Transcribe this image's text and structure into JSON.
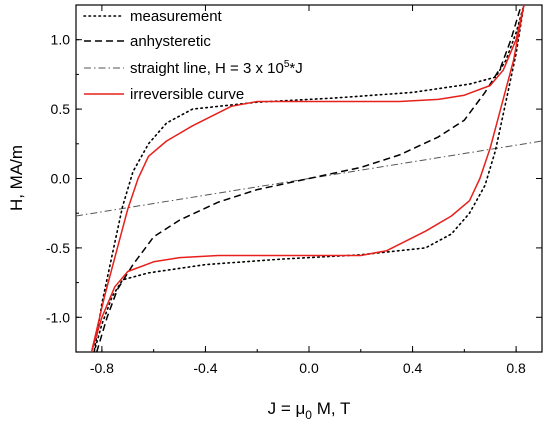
{
  "chart_data": {
    "type": "line",
    "xlabel": "J = μ0 M, T",
    "xlabel_parts": {
      "pre": "J = μ",
      "sub": "0",
      "post": " M, T"
    },
    "ylabel": "H, MA/m",
    "xlim": [
      -0.9,
      0.9
    ],
    "ylim": [
      -1.25,
      1.25
    ],
    "x_ticks": [
      -0.8,
      -0.4,
      0.0,
      0.4,
      0.8
    ],
    "x_tick_labels": [
      "-0.8",
      "-0.4",
      "0.0",
      "0.4",
      "0.8"
    ],
    "y_ticks": [
      -1.0,
      -0.5,
      0.0,
      0.5,
      1.0
    ],
    "y_tick_labels": [
      "-1.0",
      "-0.5",
      "0.0",
      "0.5",
      "1.0"
    ],
    "grid": false,
    "legend_position": "top-left",
    "series": [
      {
        "name": "measurement",
        "style": "dotted",
        "color": "#000000",
        "points": [
          [
            -0.83,
            -1.25
          ],
          [
            -0.8,
            -1.05
          ],
          [
            -0.76,
            -0.85
          ],
          [
            -0.72,
            -0.73
          ],
          [
            -0.62,
            -0.68
          ],
          [
            -0.4,
            -0.62
          ],
          [
            -0.1,
            -0.58
          ],
          [
            0.2,
            -0.55
          ],
          [
            0.45,
            -0.5
          ],
          [
            0.55,
            -0.4
          ],
          [
            0.62,
            -0.25
          ],
          [
            0.68,
            -0.05
          ],
          [
            0.72,
            0.2
          ],
          [
            0.76,
            0.55
          ],
          [
            0.8,
            0.9
          ],
          [
            0.83,
            1.25
          ],
          [
            0.8,
            1.05
          ],
          [
            0.76,
            0.85
          ],
          [
            0.72,
            0.73
          ],
          [
            0.62,
            0.68
          ],
          [
            0.4,
            0.62
          ],
          [
            0.1,
            0.58
          ],
          [
            -0.2,
            0.55
          ],
          [
            -0.45,
            0.5
          ],
          [
            -0.55,
            0.4
          ],
          [
            -0.62,
            0.25
          ],
          [
            -0.68,
            0.05
          ],
          [
            -0.72,
            -0.2
          ],
          [
            -0.76,
            -0.55
          ],
          [
            -0.8,
            -0.9
          ],
          [
            -0.83,
            -1.25
          ]
        ]
      },
      {
        "name": "anhysteretic",
        "style": "dashed",
        "color": "#000000",
        "points": [
          [
            -0.82,
            -1.25
          ],
          [
            -0.78,
            -1.0
          ],
          [
            -0.74,
            -0.8
          ],
          [
            -0.68,
            -0.62
          ],
          [
            -0.6,
            -0.42
          ],
          [
            -0.5,
            -0.3
          ],
          [
            -0.35,
            -0.17
          ],
          [
            -0.2,
            -0.08
          ],
          [
            0.0,
            0.0
          ],
          [
            0.2,
            0.08
          ],
          [
            0.35,
            0.17
          ],
          [
            0.5,
            0.3
          ],
          [
            0.6,
            0.42
          ],
          [
            0.68,
            0.62
          ],
          [
            0.74,
            0.8
          ],
          [
            0.78,
            1.0
          ],
          [
            0.82,
            1.25
          ]
        ]
      },
      {
        "name": "straight line, H = 3 x 10^5*J",
        "legend_parts": {
          "pre": "straight line, H = 3 x 10",
          "sup": "5",
          "post": "*J"
        },
        "style": "dashdot",
        "color": "#555555",
        "points": [
          [
            -0.9,
            -0.27
          ],
          [
            0.9,
            0.27
          ]
        ]
      },
      {
        "name": "irreversible curve",
        "style": "solid",
        "color": "#e8201c",
        "points": [
          [
            -0.84,
            -1.25
          ],
          [
            -0.8,
            -1.0
          ],
          [
            -0.75,
            -0.78
          ],
          [
            -0.7,
            -0.67
          ],
          [
            -0.6,
            -0.6
          ],
          [
            -0.5,
            -0.57
          ],
          [
            -0.35,
            -0.555
          ],
          [
            0.2,
            -0.555
          ],
          [
            0.3,
            -0.52
          ],
          [
            0.45,
            -0.38
          ],
          [
            0.55,
            -0.27
          ],
          [
            0.62,
            -0.16
          ],
          [
            0.66,
            0.0
          ],
          [
            0.7,
            0.22
          ],
          [
            0.74,
            0.5
          ],
          [
            0.79,
            0.85
          ],
          [
            0.83,
            1.25
          ],
          [
            0.8,
            1.0
          ],
          [
            0.75,
            0.78
          ],
          [
            0.7,
            0.67
          ],
          [
            0.6,
            0.6
          ],
          [
            0.5,
            0.57
          ],
          [
            0.35,
            0.555
          ],
          [
            -0.2,
            0.555
          ],
          [
            -0.3,
            0.52
          ],
          [
            -0.45,
            0.38
          ],
          [
            -0.55,
            0.27
          ],
          [
            -0.62,
            0.16
          ],
          [
            -0.66,
            0.0
          ],
          [
            -0.7,
            -0.22
          ],
          [
            -0.74,
            -0.5
          ],
          [
            -0.79,
            -0.85
          ],
          [
            -0.84,
            -1.25
          ]
        ]
      }
    ]
  }
}
